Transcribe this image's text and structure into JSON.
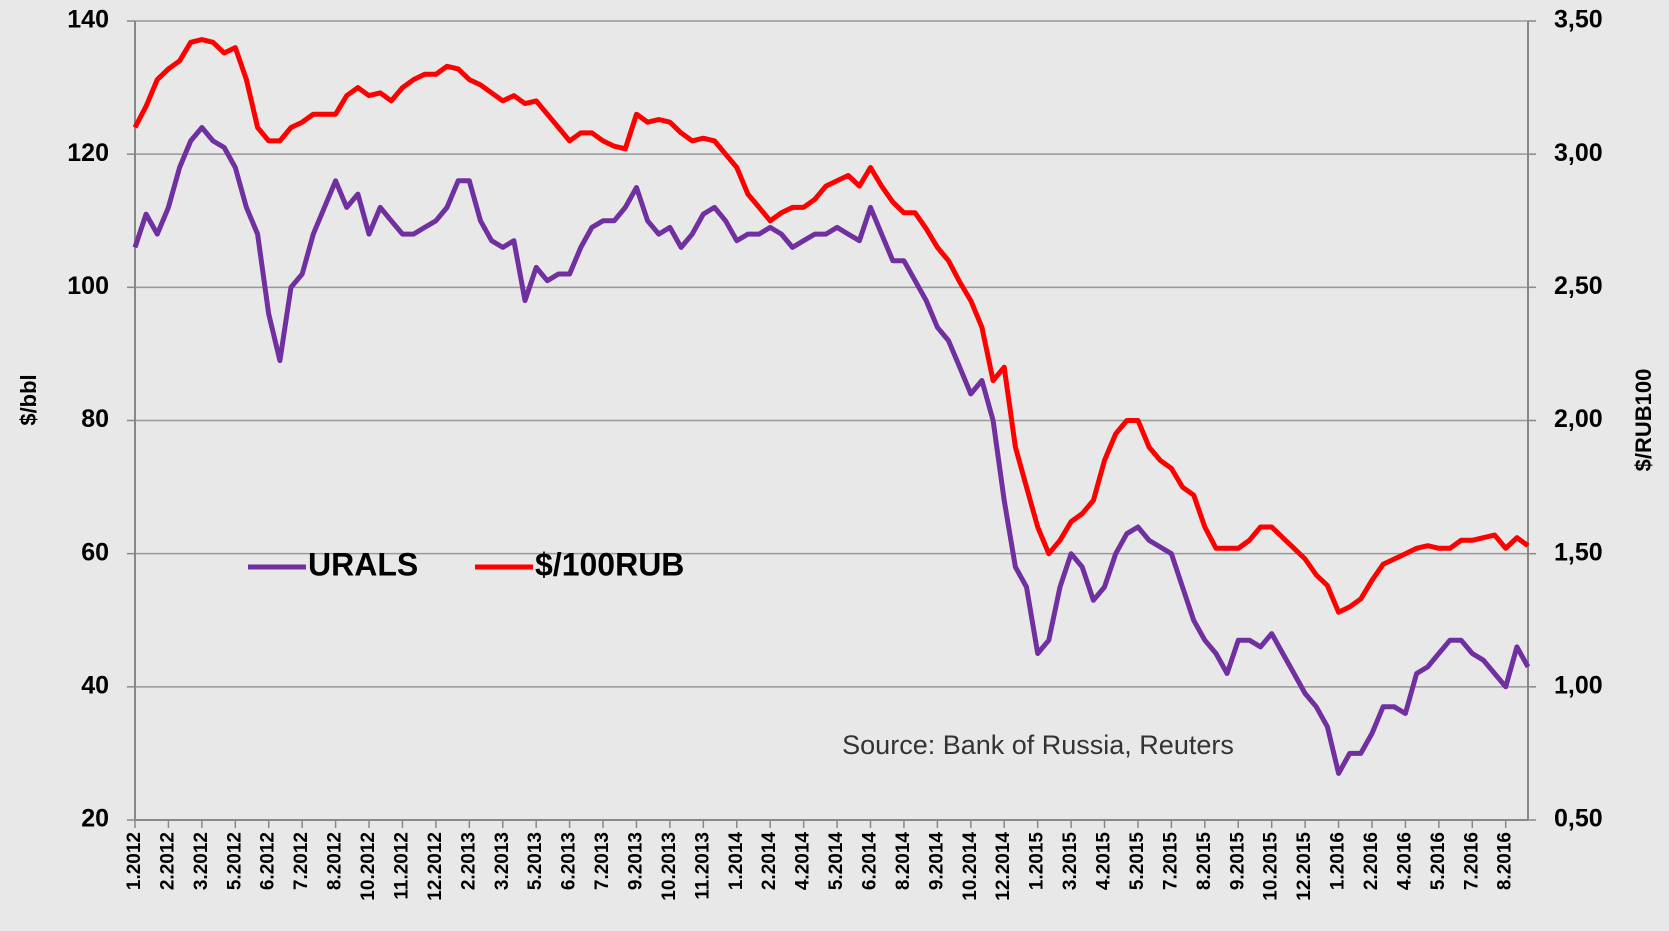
{
  "chart_data": {
    "type": "line",
    "y_label": "$/bbl",
    "y2_label": "$/RUB100",
    "annotation": "Source: Bank of Russia, Reuters",
    "categories": [
      "1.2012",
      null,
      null,
      "2.2012",
      null,
      null,
      "3.2012",
      null,
      null,
      "5.2012",
      null,
      null,
      "6.2012",
      null,
      null,
      "7.2012",
      null,
      null,
      "8.2012",
      null,
      null,
      "10.2012",
      null,
      null,
      "11.2012",
      null,
      null,
      "12.2012",
      null,
      null,
      "2.2013",
      null,
      null,
      "3.2013",
      null,
      null,
      "5.2013",
      null,
      null,
      "6.2013",
      null,
      null,
      "7.2013",
      null,
      null,
      "9.2013",
      null,
      null,
      "10.2013",
      null,
      null,
      "11.2013",
      null,
      null,
      "1.2014",
      null,
      null,
      "2.2014",
      null,
      null,
      "4.2014",
      null,
      null,
      "5.2014",
      null,
      null,
      "6.2014",
      null,
      null,
      "8.2014",
      null,
      null,
      "9.2014",
      null,
      null,
      "10.2014",
      null,
      null,
      "12.2014",
      null,
      null,
      "1.2015",
      null,
      null,
      "3.2015",
      null,
      null,
      "4.2015",
      null,
      null,
      "5.2015",
      null,
      null,
      "7.2015",
      null,
      null,
      "8.2015",
      null,
      null,
      "9.2015",
      null,
      null,
      "10.2015",
      null,
      null,
      "12.2015",
      null,
      null,
      "1.2016",
      null,
      null,
      "2.2016",
      null,
      null,
      "4.2016",
      null,
      null,
      "5.2016",
      null,
      null,
      "7.2016",
      null,
      null,
      "8.2016",
      null,
      null
    ],
    "series": [
      {
        "name": "URALS",
        "color": "#7030a0",
        "axis": "y",
        "values": [
          106,
          111,
          108,
          112,
          118,
          122,
          124,
          122,
          121,
          118,
          112,
          108,
          96,
          89,
          100,
          102,
          108,
          112,
          116,
          112,
          114,
          108,
          112,
          110,
          108,
          108,
          109,
          110,
          112,
          116,
          116,
          110,
          107,
          106,
          107,
          98,
          103,
          101,
          102,
          102,
          106,
          109,
          110,
          110,
          112,
          115,
          110,
          108,
          109,
          106,
          108,
          111,
          112,
          110,
          107,
          108,
          108,
          109,
          108,
          106,
          107,
          108,
          108,
          109,
          108,
          107,
          112,
          108,
          104,
          104,
          101,
          98,
          94,
          92,
          88,
          84,
          86,
          80,
          68,
          58,
          55,
          45,
          47,
          55,
          60,
          58,
          53,
          55,
          60,
          63,
          64,
          62,
          61,
          60,
          55,
          50,
          47,
          45,
          42,
          47,
          47,
          46,
          48,
          45,
          42,
          39,
          37,
          34,
          27,
          30,
          30,
          33,
          37,
          37,
          36,
          42,
          43,
          45,
          47,
          47,
          45,
          44,
          42,
          40,
          46,
          43
        ]
      },
      {
        "name": "$/100RUB",
        "color": "#ff0000",
        "axis": "y2",
        "values": [
          3.1,
          3.18,
          3.28,
          3.32,
          3.35,
          3.42,
          3.43,
          3.42,
          3.38,
          3.4,
          3.28,
          3.1,
          3.05,
          3.05,
          3.1,
          3.12,
          3.15,
          3.15,
          3.15,
          3.22,
          3.25,
          3.22,
          3.23,
          3.2,
          3.25,
          3.28,
          3.3,
          3.3,
          3.33,
          3.32,
          3.28,
          3.26,
          3.23,
          3.2,
          3.22,
          3.19,
          3.2,
          3.15,
          3.1,
          3.05,
          3.08,
          3.08,
          3.05,
          3.03,
          3.02,
          3.15,
          3.12,
          3.13,
          3.12,
          3.08,
          3.05,
          3.06,
          3.05,
          3.0,
          2.95,
          2.85,
          2.8,
          2.75,
          2.78,
          2.8,
          2.8,
          2.83,
          2.88,
          2.9,
          2.92,
          2.88,
          2.95,
          2.88,
          2.82,
          2.78,
          2.78,
          2.72,
          2.65,
          2.6,
          2.52,
          2.45,
          2.35,
          2.15,
          2.2,
          1.9,
          1.75,
          1.6,
          1.5,
          1.55,
          1.62,
          1.65,
          1.7,
          1.85,
          1.95,
          2.0,
          2.0,
          1.9,
          1.85,
          1.82,
          1.75,
          1.72,
          1.6,
          1.52,
          1.52,
          1.52,
          1.55,
          1.6,
          1.6,
          1.56,
          1.52,
          1.48,
          1.42,
          1.38,
          1.28,
          1.3,
          1.33,
          1.4,
          1.46,
          1.48,
          1.5,
          1.52,
          1.53,
          1.52,
          1.52,
          1.55,
          1.55,
          1.56,
          1.57,
          1.52,
          1.56,
          1.53
        ]
      }
    ],
    "ylim": [
      20,
      140
    ],
    "yticks": [
      20,
      40,
      60,
      80,
      100,
      120,
      140
    ],
    "y2lim": [
      0.5,
      3.5
    ],
    "y2ticks": [
      {
        "value": 0.5,
        "label": "0,50"
      },
      {
        "value": 1.0,
        "label": "1,00"
      },
      {
        "value": 1.5,
        "label": "1,50"
      },
      {
        "value": 2.0,
        "label": "2,00"
      },
      {
        "value": 2.5,
        "label": "2,50"
      },
      {
        "value": 3.0,
        "label": "3,00"
      },
      {
        "value": 3.5,
        "label": "3,50"
      }
    ],
    "grid": true
  }
}
